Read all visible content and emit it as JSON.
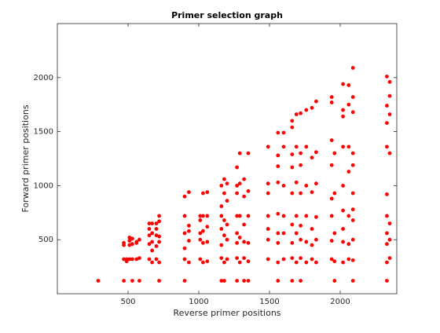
{
  "chart_data": {
    "type": "scatter",
    "title": "Primer selection graph",
    "x_label": "Reverse primer positions",
    "y_label": "Forward primer positions",
    "color": "#ff0000",
    "xlim": [
      0,
      2400
    ],
    "xticks": [
      500,
      1000,
      1500,
      2000
    ],
    "ylim": [
      0,
      2500
    ],
    "yticks": [
      500,
      1000,
      1500,
      2000
    ],
    "grid": false,
    "x": [
      289,
      470,
      470,
      470,
      470,
      490,
      490,
      510,
      510,
      510,
      510,
      530,
      530,
      530,
      530,
      560,
      560,
      560,
      580,
      580,
      580,
      650,
      650,
      650,
      650,
      650,
      670,
      670,
      670,
      670,
      670,
      700,
      700,
      700,
      700,
      700,
      720,
      720,
      720,
      720,
      720,
      720,
      900,
      900,
      900,
      900,
      900,
      900,
      930,
      930,
      930,
      930,
      930,
      1010,
      1010,
      1010,
      1010,
      1010,
      1030,
      1030,
      1030,
      1030,
      1030,
      1060,
      1060,
      1060,
      1060,
      1060,
      1160,
      1160,
      1160,
      1160,
      1160,
      1160,
      1160,
      1180,
      1180,
      1180,
      1180,
      1180,
      1180,
      1200,
      1200,
      1200,
      1200,
      1200,
      1270,
      1270,
      1270,
      1270,
      1270,
      1270,
      1270,
      1270,
      1290,
      1290,
      1290,
      1290,
      1290,
      1320,
      1320,
      1320,
      1320,
      1320,
      1320,
      1350,
      1350,
      1350,
      1350,
      1350,
      1350,
      1490,
      1490,
      1490,
      1490,
      1490,
      1490,
      1490,
      1560,
      1560,
      1560,
      1560,
      1560,
      1560,
      1560,
      1560,
      1560,
      1600,
      1600,
      1600,
      1600,
      1600,
      1600,
      1660,
      1660,
      1660,
      1660,
      1660,
      1660,
      1660,
      1660,
      1660,
      1690,
      1690,
      1690,
      1690,
      1690,
      1690,
      1720,
      1720,
      1720,
      1720,
      1720,
      1720,
      1720,
      1720,
      1760,
      1760,
      1760,
      1760,
      1760,
      1760,
      1800,
      1800,
      1800,
      1800,
      1800,
      1800,
      1830,
      1830,
      1830,
      1830,
      1830,
      1830,
      1940,
      1940,
      1940,
      1940,
      1940,
      1940,
      1940,
      1940,
      1960,
      1960,
      1960,
      1960,
      1960,
      2020,
      2020,
      2020,
      2020,
      2020,
      2020,
      2020,
      2020,
      2020,
      2060,
      2060,
      2060,
      2060,
      2060,
      2060,
      2060,
      2090,
      2090,
      2090,
      2090,
      2090,
      2090,
      2090,
      2090,
      2090,
      2090,
      2090,
      2330,
      2330,
      2330,
      2330,
      2330,
      2330,
      2330,
      2330,
      2330,
      2330,
      2350,
      2350,
      2350,
      2350,
      2350,
      2350,
      2350
    ],
    "values": [
      120,
      120,
      320,
      450,
      470,
      320,
      300,
      320,
      450,
      490,
      520,
      120,
      320,
      460,
      510,
      320,
      470,
      480,
      120,
      330,
      500,
      320,
      460,
      540,
      600,
      650,
      290,
      400,
      480,
      560,
      650,
      320,
      440,
      540,
      600,
      650,
      120,
      290,
      480,
      530,
      670,
      720,
      120,
      320,
      420,
      560,
      720,
      900,
      290,
      490,
      580,
      630,
      940,
      320,
      500,
      560,
      680,
      720,
      290,
      470,
      580,
      720,
      930,
      300,
      480,
      620,
      720,
      940,
      120,
      330,
      450,
      600,
      720,
      810,
      1000,
      120,
      290,
      540,
      680,
      930,
      1060,
      320,
      500,
      640,
      860,
      1020,
      120,
      330,
      470,
      560,
      720,
      930,
      1000,
      1170,
      290,
      520,
      720,
      1020,
      1300,
      120,
      330,
      480,
      640,
      900,
      1060,
      120,
      300,
      470,
      720,
      950,
      1300,
      320,
      500,
      600,
      720,
      930,
      1020,
      1360,
      120,
      290,
      470,
      560,
      740,
      1030,
      1180,
      1280,
      1490,
      320,
      560,
      720,
      1000,
      1360,
      1490,
      120,
      330,
      470,
      640,
      930,
      1170,
      1290,
      1540,
      1600,
      290,
      560,
      720,
      1030,
      1360,
      1660,
      120,
      330,
      500,
      630,
      930,
      1190,
      1300,
      1670,
      290,
      480,
      720,
      1000,
      1360,
      1700,
      320,
      450,
      600,
      940,
      1260,
      1720,
      290,
      500,
      710,
      1020,
      1310,
      1780,
      320,
      490,
      720,
      880,
      1190,
      1420,
      1770,
      1820,
      120,
      300,
      560,
      930,
      1300,
      290,
      480,
      600,
      770,
      1000,
      1360,
      1640,
      1700,
      1940,
      320,
      460,
      720,
      1130,
      1360,
      1750,
      1930,
      120,
      310,
      500,
      680,
      780,
      930,
      1190,
      1300,
      1680,
      1820,
      2090,
      120,
      290,
      460,
      560,
      720,
      920,
      1360,
      1580,
      1740,
      2010,
      330,
      500,
      650,
      1300,
      1660,
      1830,
      1960
    ]
  }
}
